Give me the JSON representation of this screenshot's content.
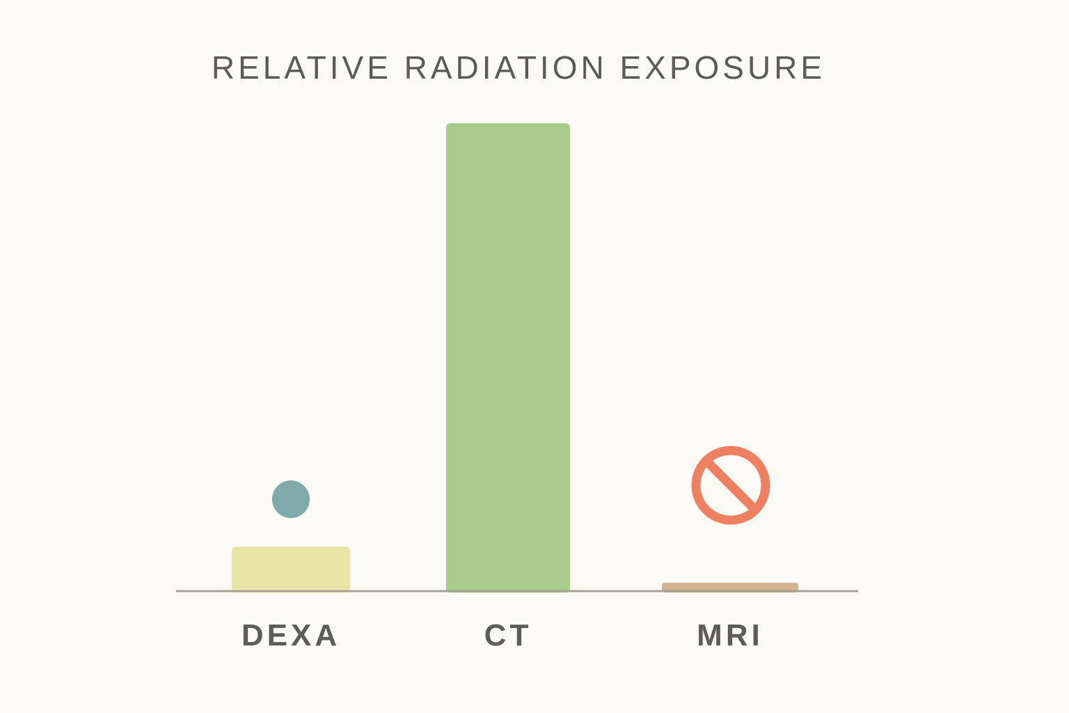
{
  "chart_data": {
    "type": "bar",
    "title": "RELATIVE RADIATION EXPOSURE",
    "xlabel": "",
    "ylabel": "",
    "categories": [
      "DEXA",
      "CT",
      "MRI"
    ],
    "values": [
      9.5,
      100,
      1.8
    ],
    "ylim": [
      0,
      100
    ],
    "grid": false,
    "legend": "none",
    "colors": [
      "#e9e5a6",
      "#a8cc8c",
      "#d2b392"
    ],
    "markers": [
      {
        "category": "DEXA",
        "icon": "teal-dot-icon",
        "color": "#7fa9ab"
      },
      {
        "category": "MRI",
        "icon": "no-symbol-icon",
        "color": "#ee8062"
      }
    ],
    "axis_color": "#a6a097"
  }
}
